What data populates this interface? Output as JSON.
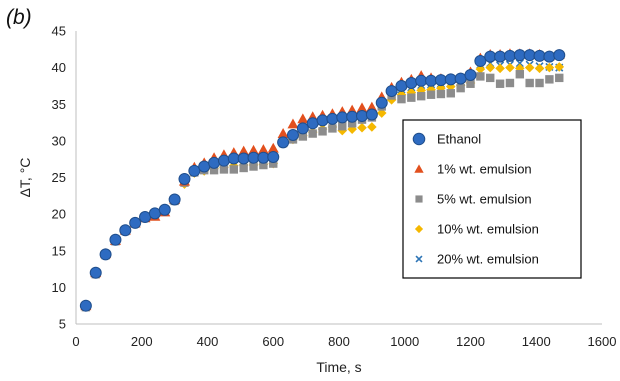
{
  "panel_label": "(b)",
  "chart_data": {
    "type": "scatter",
    "title": "",
    "xlabel": "Time, s",
    "ylabel": "ΔT, °C",
    "xlim": [
      0,
      1600
    ],
    "ylim": [
      5,
      45
    ],
    "xticks": [
      0,
      200,
      400,
      600,
      800,
      1000,
      1200,
      1400,
      1600
    ],
    "yticks": [
      5,
      10,
      15,
      20,
      25,
      30,
      35,
      40,
      45
    ],
    "grid": false,
    "legend_position": "right",
    "series": [
      {
        "name": "Ethanol",
        "marker": "circle",
        "color": "#2E6BC1",
        "edge": "#1F4E8C",
        "x": [
          30,
          60,
          90,
          120,
          150,
          180,
          210,
          240,
          270,
          300,
          330,
          360,
          390,
          420,
          450,
          480,
          510,
          540,
          570,
          600,
          630,
          660,
          690,
          720,
          750,
          780,
          810,
          840,
          870,
          900,
          930,
          960,
          990,
          1020,
          1050,
          1080,
          1110,
          1140,
          1170,
          1200,
          1230,
          1260,
          1290,
          1320,
          1350,
          1380,
          1410,
          1440,
          1470
        ],
        "y": [
          7.5,
          12.0,
          14.5,
          16.5,
          17.8,
          18.8,
          19.6,
          20.1,
          20.6,
          22.0,
          24.8,
          25.9,
          26.5,
          27.0,
          27.3,
          27.6,
          27.6,
          27.7,
          27.7,
          27.8,
          29.8,
          30.8,
          31.7,
          32.4,
          32.8,
          33.0,
          33.2,
          33.3,
          33.4,
          33.6,
          35.2,
          36.8,
          37.5,
          37.9,
          38.2,
          38.2,
          38.3,
          38.4,
          38.5,
          39.0,
          40.9,
          41.5,
          41.5,
          41.6,
          41.7,
          41.7,
          41.6,
          41.5,
          41.7
        ]
      },
      {
        "name": "1% wt. emulsion",
        "marker": "triangle",
        "color": "#E2501E",
        "x": [
          30,
          60,
          90,
          120,
          150,
          180,
          210,
          240,
          270,
          300,
          330,
          360,
          390,
          420,
          450,
          480,
          510,
          540,
          570,
          600,
          630,
          660,
          690,
          720,
          750,
          780,
          810,
          840,
          870,
          900,
          930,
          960,
          990,
          1020,
          1050,
          1080,
          1110,
          1140,
          1170,
          1200,
          1230,
          1260,
          1290,
          1320,
          1350,
          1380,
          1410,
          1440,
          1470
        ],
        "y": [
          7.5,
          12.0,
          14.6,
          16.4,
          17.8,
          18.8,
          19.5,
          19.7,
          20.3,
          22.0,
          24.5,
          26.4,
          27.0,
          27.7,
          28.1,
          28.4,
          28.6,
          28.7,
          28.8,
          29.0,
          31.0,
          32.3,
          33.0,
          33.3,
          33.5,
          33.7,
          34.0,
          34.2,
          34.5,
          34.6,
          36.0,
          37.3,
          38.0,
          38.4,
          38.9,
          38.6,
          38.5,
          38.5,
          38.6,
          39.4,
          41.3,
          41.8,
          41.8,
          41.9,
          41.9,
          41.9,
          41.8,
          41.6,
          41.8
        ]
      },
      {
        "name": "5% wt. emulsion",
        "marker": "square",
        "color": "#8C8C8C",
        "x": [
          30,
          60,
          90,
          120,
          150,
          180,
          210,
          240,
          270,
          300,
          330,
          360,
          390,
          420,
          450,
          480,
          510,
          540,
          570,
          600,
          630,
          660,
          690,
          720,
          750,
          780,
          810,
          840,
          870,
          900,
          930,
          960,
          990,
          1020,
          1050,
          1080,
          1110,
          1140,
          1170,
          1200,
          1230,
          1260,
          1290,
          1320,
          1350,
          1380,
          1410,
          1440,
          1470
        ],
        "y": [
          7.3,
          11.8,
          14.4,
          16.3,
          17.7,
          18.7,
          19.5,
          20.0,
          20.5,
          21.8,
          24.3,
          25.7,
          26.0,
          26.0,
          26.1,
          26.1,
          26.3,
          26.5,
          26.7,
          26.9,
          29.7,
          30.2,
          30.6,
          31.0,
          31.3,
          31.7,
          32.0,
          32.4,
          32.9,
          33.2,
          34.7,
          36.2,
          35.7,
          35.9,
          36.1,
          36.3,
          36.4,
          36.5,
          37.2,
          37.8,
          38.8,
          38.6,
          37.8,
          37.9,
          39.1,
          37.9,
          37.9,
          38.4,
          38.6
        ]
      },
      {
        "name": "10% wt. emulsion",
        "marker": "diamond",
        "color": "#F5B800",
        "x": [
          30,
          60,
          90,
          120,
          150,
          180,
          210,
          240,
          270,
          300,
          330,
          360,
          390,
          420,
          450,
          480,
          510,
          540,
          570,
          600,
          630,
          660,
          690,
          720,
          750,
          780,
          810,
          840,
          870,
          900,
          930,
          960,
          990,
          1020,
          1050,
          1080,
          1110,
          1140,
          1170,
          1200,
          1230,
          1260,
          1290,
          1320,
          1350,
          1380,
          1410,
          1440,
          1470
        ],
        "y": [
          7.4,
          11.9,
          14.5,
          16.4,
          17.8,
          18.9,
          19.6,
          20.1,
          20.6,
          22.0,
          24.1,
          25.6,
          25.9,
          26.2,
          26.4,
          26.6,
          26.7,
          26.7,
          26.8,
          26.9,
          29.7,
          30.2,
          30.7,
          31.2,
          31.6,
          31.9,
          31.4,
          31.6,
          31.8,
          31.9,
          33.8,
          35.6,
          36.3,
          36.6,
          36.9,
          37.0,
          37.2,
          37.4,
          37.6,
          37.9,
          39.8,
          40.0,
          39.9,
          40.0,
          39.9,
          40.0,
          39.9,
          40.0,
          40.1
        ]
      },
      {
        "name": "20% wt. emulsion",
        "marker": "x",
        "color": "#2E75B6",
        "x": [
          30,
          60,
          90,
          120,
          150,
          180,
          210,
          240,
          270,
          300,
          330,
          360,
          390,
          420,
          450,
          480,
          510,
          540,
          570,
          600,
          630,
          660,
          690,
          720,
          750,
          780,
          810,
          840,
          870,
          900,
          930,
          960,
          990,
          1020,
          1050,
          1080,
          1110,
          1140,
          1170,
          1200,
          1230,
          1260,
          1290,
          1320,
          1350,
          1380,
          1410,
          1440,
          1470
        ],
        "y": [
          7.4,
          11.9,
          14.5,
          16.4,
          17.8,
          18.8,
          19.5,
          20.0,
          20.5,
          21.9,
          24.4,
          25.8,
          26.3,
          26.6,
          26.8,
          27.0,
          27.1,
          27.2,
          27.3,
          27.4,
          29.8,
          30.5,
          31.1,
          31.7,
          32.1,
          32.4,
          32.5,
          32.7,
          33.0,
          33.3,
          35.0,
          36.6,
          37.0,
          37.3,
          37.6,
          37.7,
          37.8,
          37.9,
          38.0,
          38.5,
          40.4,
          40.6,
          40.3,
          40.4,
          40.6,
          40.4,
          40.2,
          40.1,
          40.0
        ]
      }
    ]
  }
}
